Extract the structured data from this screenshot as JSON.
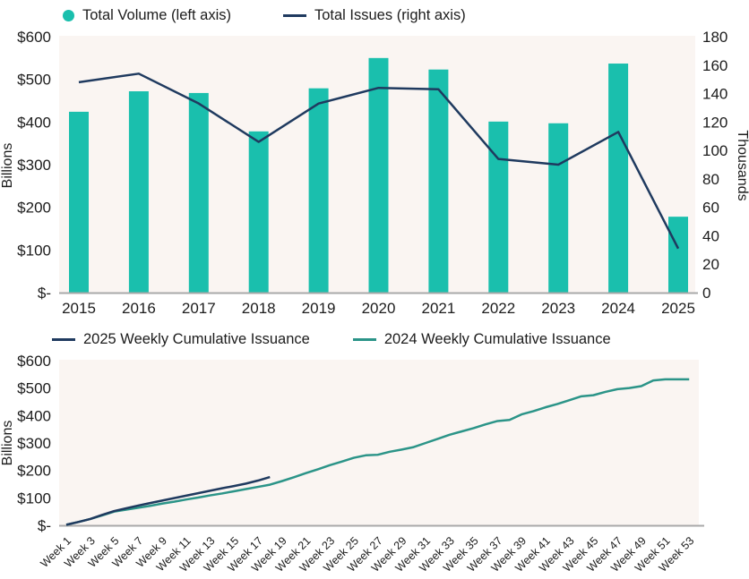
{
  "colors": {
    "teal_bar": "#1abfad",
    "navy": "#1f3a5f",
    "teal_line": "#2b9488",
    "plot_bg": "#faf5f2",
    "axis_line": "#a9a9a9",
    "text": "#1c1c1c"
  },
  "chart_data": [
    {
      "type": "bar",
      "subtype": "combo-bar-line-dual-axis",
      "title": "",
      "categories": [
        "2015",
        "2016",
        "2017",
        "2018",
        "2019",
        "2020",
        "2021",
        "2022",
        "2023",
        "2024",
        "2025"
      ],
      "series": [
        {
          "name": "Total Volume (left axis)",
          "type": "bar",
          "axis": "left",
          "unit": "$ billions",
          "values": [
            424,
            472,
            468,
            378,
            479,
            550,
            523,
            401,
            397,
            537,
            178
          ]
        },
        {
          "name": "Total Issues (right axis)",
          "type": "line",
          "axis": "right",
          "unit": "thousands",
          "values": [
            148,
            154,
            133,
            106,
            133,
            144,
            143,
            94,
            90,
            113,
            31
          ]
        }
      ],
      "left_axis": {
        "label": "Billions",
        "min": 0,
        "max": 600,
        "step": 100,
        "ticks": [
          "$600",
          "$500",
          "$400",
          "$300",
          "$200",
          "$100",
          "$-"
        ]
      },
      "right_axis": {
        "label": "Thousands",
        "min": 0,
        "max": 180,
        "step": 20,
        "ticks": [
          "180",
          "160",
          "140",
          "120",
          "100",
          "80",
          "60",
          "40",
          "20",
          "0"
        ]
      },
      "legend_position": "top",
      "grid": false
    },
    {
      "type": "line",
      "title": "",
      "x_range": [
        1,
        53
      ],
      "x_tick_labels": [
        "Week 1",
        "Week 3",
        "Week 5",
        "Week 7",
        "Week 9",
        "Week 11",
        "Week 13",
        "Week 15",
        "Week 17",
        "Week 19",
        "Week 21",
        "Week 23",
        "Week 25",
        "Week 27",
        "Week 29",
        "Week 31",
        "Week 33",
        "Week 35",
        "Week 37",
        "Week 39",
        "Week 41",
        "Week 43",
        "Week 45",
        "Week 47",
        "Week 49",
        "Week 51",
        "Week 53"
      ],
      "series": [
        {
          "name": "2025 Weekly Cumulative Issuance",
          "unit": "$ billions",
          "start_week": 1,
          "values": [
            2,
            12,
            23,
            38,
            52,
            62,
            72,
            81,
            90,
            99,
            108,
            117,
            126,
            135,
            143,
            152,
            163,
            176
          ]
        },
        {
          "name": "2024 Weekly Cumulative Issuance",
          "unit": "$ billions",
          "start_week": 1,
          "values": [
            2,
            12,
            23,
            36,
            50,
            57,
            64,
            71,
            79,
            86,
            94,
            101,
            109,
            116,
            124,
            132,
            140,
            148,
            161,
            175,
            190,
            204,
            219,
            232,
            246,
            255,
            257,
            268,
            276,
            285,
            300,
            315,
            330,
            342,
            354,
            368,
            380,
            384,
            404,
            416,
            430,
            442,
            456,
            470,
            474,
            486,
            496,
            500,
            507,
            528,
            532,
            532,
            532
          ]
        }
      ],
      "left_axis": {
        "label": "Billions",
        "min": 0,
        "max": 600,
        "step": 100,
        "ticks": [
          "$600",
          "$500",
          "$400",
          "$300",
          "$200",
          "$100",
          "$-"
        ]
      },
      "legend_position": "top",
      "grid": false
    }
  ]
}
